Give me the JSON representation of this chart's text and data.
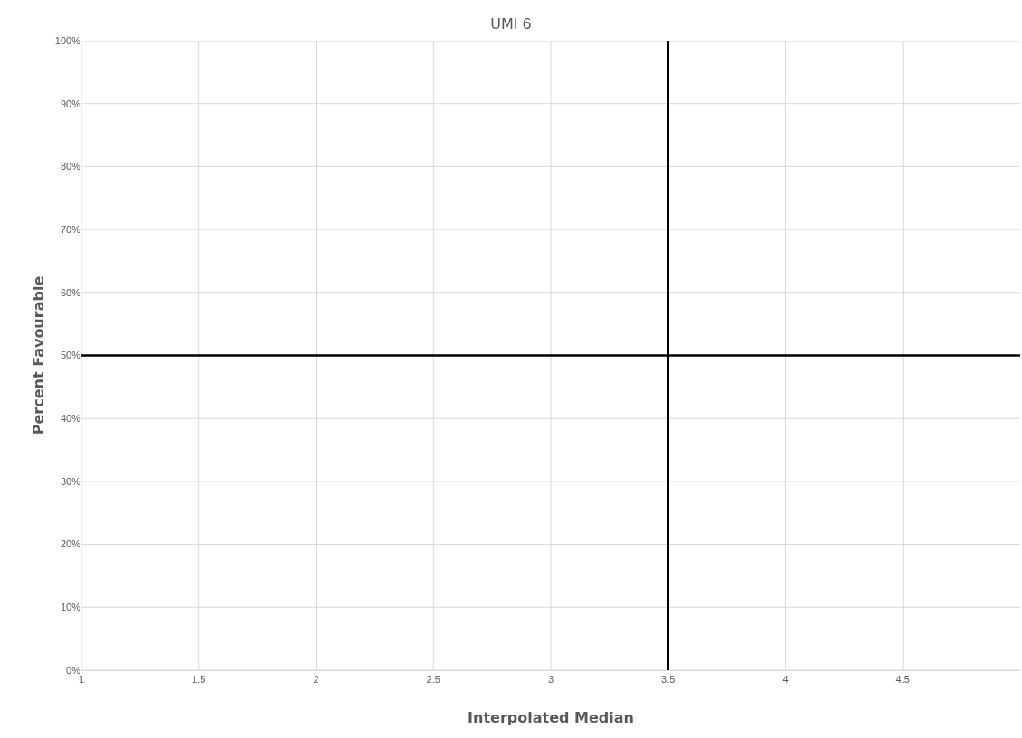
{
  "chart_data": {
    "type": "line",
    "title": "UMI 6",
    "xlabel": "Interpolated Median",
    "ylabel": "Percent Favourable",
    "xlim": [
      1,
      5
    ],
    "xticks": [
      1,
      1.5,
      2,
      2.5,
      3,
      3.5,
      4,
      4.5
    ],
    "ylim": [
      0,
      100
    ],
    "yticks": [
      {
        "value": 0,
        "label": "0%"
      },
      {
        "value": 10,
        "label": "10%"
      },
      {
        "value": 20,
        "label": "20%"
      },
      {
        "value": 30,
        "label": "30%"
      },
      {
        "value": 40,
        "label": "40%"
      },
      {
        "value": 50,
        "label": "50%"
      },
      {
        "value": 60,
        "label": "60%"
      },
      {
        "value": 70,
        "label": "70%"
      },
      {
        "value": 80,
        "label": "80%"
      },
      {
        "value": 90,
        "label": "90%"
      },
      {
        "value": 100,
        "label": "100%"
      }
    ],
    "series": [
      {
        "color": "#000000",
        "x": [
          3.5,
          3.5
        ],
        "values": [
          0,
          100
        ]
      },
      {
        "color": "#000000",
        "x": [
          1,
          5
        ],
        "values": [
          50,
          50
        ]
      }
    ],
    "marker": "none",
    "grid": true
  }
}
